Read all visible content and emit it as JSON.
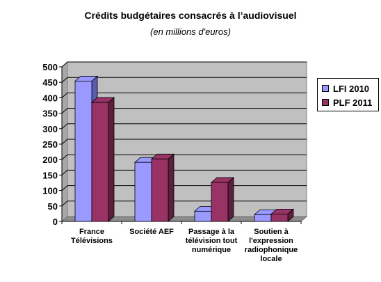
{
  "chart_data": {
    "type": "bar",
    "title": "Crédits budgétaires consacrés à l’audiovisuel",
    "subtitle": "(en millions d'euros)",
    "categories": [
      [
        "France",
        "Télévisions"
      ],
      [
        "Société AEF"
      ],
      [
        "Passage à la",
        "télévision tout",
        "numérique"
      ],
      [
        "Soutien à",
        "l'expression",
        "radiophonique",
        "locale"
      ]
    ],
    "series": [
      {
        "name": "LFI 2010",
        "color": "#9999FF",
        "dark": "#5B5BB0",
        "values": [
          454,
          191,
          33,
          22
        ]
      },
      {
        "name": "PLF 2011",
        "color": "#993366",
        "dark": "#5C1F3D",
        "values": [
          385,
          202,
          126,
          24
        ]
      }
    ],
    "ylim": [
      0,
      500
    ],
    "yticks": [
      0,
      50,
      100,
      150,
      200,
      250,
      300,
      350,
      400,
      450,
      500
    ],
    "grid": true,
    "legend_position": "right"
  }
}
